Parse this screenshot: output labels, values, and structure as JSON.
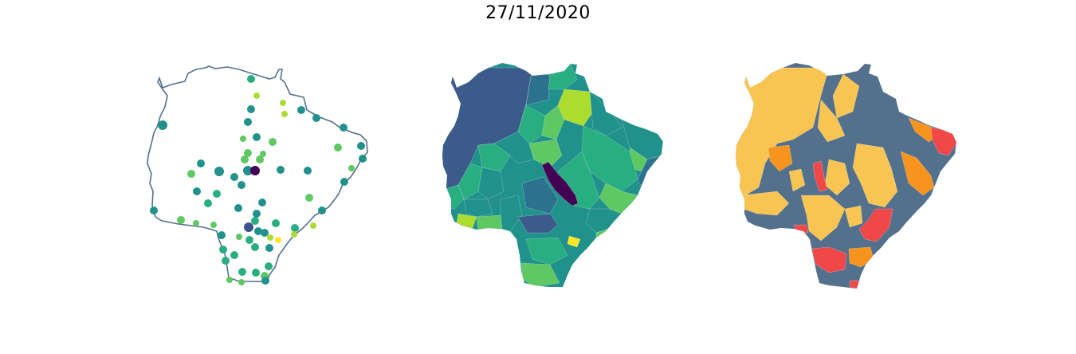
{
  "title": "27/11/2020",
  "palettes": {
    "viridis": [
      "#440154",
      "#3b528b",
      "#2c728e",
      "#21918c",
      "#28ae80",
      "#5ec962",
      "#addc30",
      "#fde725"
    ],
    "risk": [
      "#53708d",
      "#f9c552",
      "#f7941d",
      "#f04848"
    ]
  },
  "colors": {
    "outline": "#53708d",
    "region_border": "#ffffff"
  },
  "panels": [
    {
      "name": "points-map",
      "type": "point-scatter-map"
    },
    {
      "name": "choropleth-map",
      "type": "continuous-choropleth"
    },
    {
      "name": "risk-map",
      "type": "categorical-choropleth"
    }
  ]
}
